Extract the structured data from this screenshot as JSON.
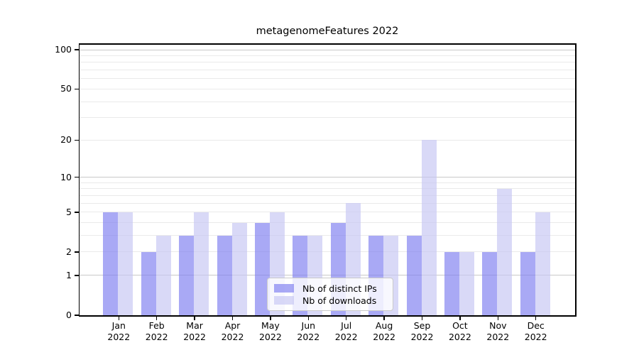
{
  "colors": {
    "background": "#ffffff",
    "axis": "#000000",
    "grid_major": "#c9c9c9",
    "grid_minor": "#eaeaea",
    "text": "#000000",
    "legend_border": "#cbcbcb"
  },
  "chart_data": {
    "type": "bar",
    "title": "metagenomeFeatures 2022",
    "categories": [
      "Jan 2022",
      "Feb 2022",
      "Mar 2022",
      "Apr 2022",
      "May 2022",
      "Jun 2022",
      "Jul 2022",
      "Aug 2022",
      "Sep 2022",
      "Oct 2022",
      "Nov 2022",
      "Dec 2022"
    ],
    "series": [
      {
        "name": "Nb of distinct IPs",
        "color": "rgba(124,124,240,0.66)",
        "color_hex_over_white": "#abaaf6",
        "values": [
          5,
          2,
          3,
          3,
          4,
          3,
          4,
          3,
          3,
          2,
          2,
          2
        ]
      },
      {
        "name": "Nb of downloads",
        "color": "rgba(198,198,243,0.66)",
        "color_hex_over_white": "#dbdbf8",
        "values": [
          5,
          3,
          5,
          4,
          5,
          3,
          6,
          3,
          20,
          2,
          8,
          5
        ]
      }
    ],
    "xlabel": "",
    "ylabel": "",
    "y_scale": "log1p",
    "ylim": [
      0,
      100
    ],
    "y_ticks": [
      0,
      1,
      2,
      5,
      10,
      20,
      50,
      100
    ],
    "y_gridlines_major": [
      1,
      10,
      100
    ],
    "y_gridlines_minor": [
      2,
      3,
      4,
      5,
      6,
      7,
      8,
      9,
      20,
      30,
      40,
      50,
      60,
      70,
      80,
      90
    ],
    "grid": "on",
    "legend_position": "bottom-center"
  }
}
